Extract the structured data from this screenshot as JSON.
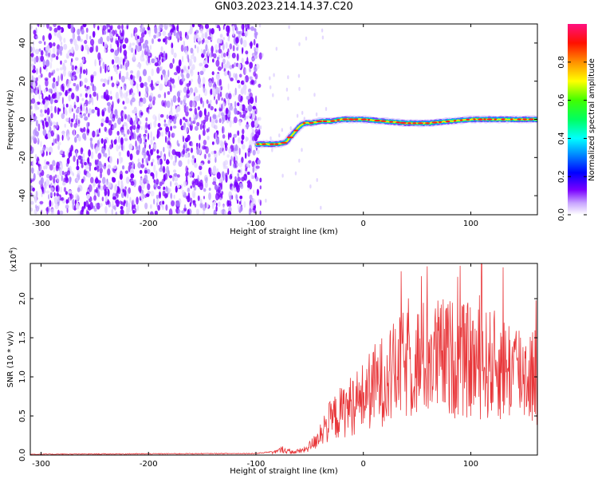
{
  "title": "GN03.2023.214.14.37.C20",
  "chart_data": [
    {
      "type": "heatmap",
      "xlabel": "Height of straight line (km)",
      "ylabel": "Frequency (Hz)",
      "xlim": [
        -310,
        162
      ],
      "ylim": [
        -50,
        50
      ],
      "xticks": [
        -300,
        -200,
        -100,
        0,
        100
      ],
      "yticks": [
        -40,
        -20,
        0,
        20,
        40
      ],
      "noise_region_x": [
        -310,
        -100
      ],
      "ridge": {
        "x": [
          -100,
          -90,
          -80,
          -72,
          -66,
          -60,
          -55,
          -50,
          -40,
          -30,
          -20,
          -10,
          0,
          20,
          40,
          60,
          80,
          100,
          120,
          140,
          162
        ],
        "y": [
          -13,
          -13,
          -13,
          -12,
          -8,
          -4,
          -2,
          -2,
          -1,
          -1,
          0,
          0,
          0,
          -1,
          -2,
          -2,
          -1,
          0,
          0,
          0,
          0
        ]
      },
      "colorbar": {
        "label": "Normalized spectral amplitude",
        "range": [
          0,
          1
        ],
        "ticks": [
          "0.0",
          "0.2",
          "0.4",
          "0.6",
          "0.8"
        ],
        "tick_values": [
          0,
          0.2,
          0.4,
          0.6,
          0.8
        ]
      }
    },
    {
      "type": "line",
      "xlabel": "Height of straight line (km)",
      "ylabel": "SNR (10 * v/v)",
      "y_multiplier": "(x10",
      "y_multiplier_exp": "4",
      "y_multiplier_close": ")",
      "xlim": [
        -310,
        162
      ],
      "ylim": [
        0,
        2.45
      ],
      "xticks": [
        -300,
        -200,
        -100,
        0,
        100
      ],
      "yticks": [
        "0.0",
        "0.5",
        "1.0",
        "1.5",
        "2.0"
      ],
      "ytick_values": [
        0,
        0.5,
        1.0,
        1.5,
        2.0
      ],
      "series": [
        {
          "color": "#e8373a",
          "envelope_x": [
            -310,
            -100,
            -80,
            -75,
            -70,
            -65,
            -55,
            -45,
            -40,
            -30,
            -20,
            -10,
            0,
            10,
            20,
            30,
            40,
            50,
            60,
            70,
            80,
            90,
            100,
            110,
            120,
            130,
            140,
            150,
            162
          ],
          "envelope_y": [
            0.01,
            0.02,
            0.05,
            0.08,
            0.05,
            0.04,
            0.07,
            0.18,
            0.32,
            0.48,
            0.6,
            0.7,
            0.8,
            0.95,
            1.05,
            1.15,
            1.25,
            1.3,
            1.35,
            1.35,
            1.35,
            1.3,
            1.3,
            1.25,
            1.25,
            1.2,
            1.2,
            1.15,
            1.1
          ]
        }
      ],
      "peaks": [
        [
          35,
          2.35
        ],
        [
          90,
          2.42
        ],
        [
          110,
          2.45
        ],
        [
          130,
          2.4
        ]
      ]
    }
  ]
}
